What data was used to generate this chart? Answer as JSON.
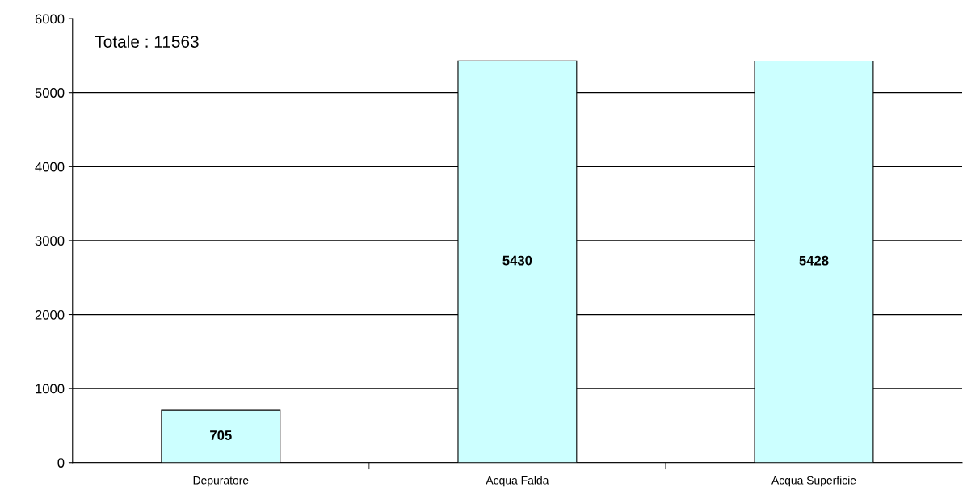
{
  "chart_data": {
    "type": "bar",
    "categories": [
      "Depuratore",
      "Acqua Falda",
      "Acqua Superficie"
    ],
    "values": [
      705,
      5430,
      5428
    ],
    "color": "#ccffff",
    "ylim": [
      0,
      6000
    ],
    "yticks": [
      0,
      1000,
      2000,
      3000,
      4000,
      5000,
      6000
    ],
    "grid": "y",
    "data_labels": true,
    "legend": false,
    "annotations": [
      "Totale : 11563"
    ]
  }
}
